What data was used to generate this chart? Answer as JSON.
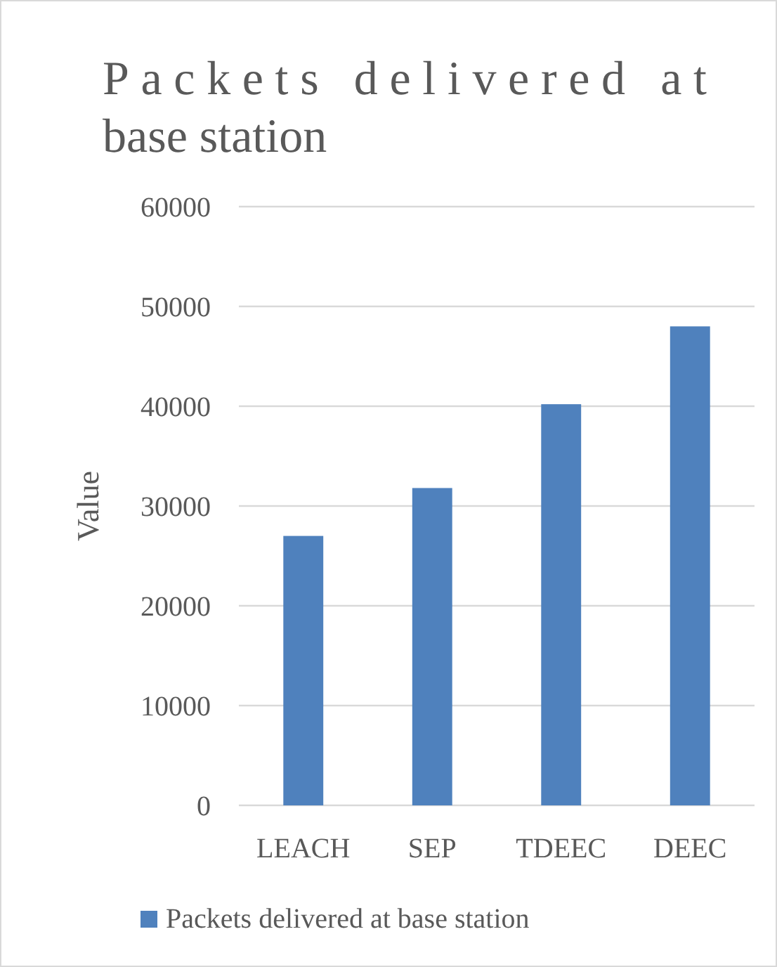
{
  "chart_data": {
    "type": "bar",
    "title": "Packets delivered at base station",
    "ylabel": "Value",
    "categories": [
      "LEACH",
      "SEP",
      "TDEEC",
      "DEEC"
    ],
    "series": [
      {
        "name": "Packets delivered at base station",
        "color": "#4f81bd",
        "values": [
          27000,
          31800,
          40200,
          48000
        ]
      }
    ],
    "ylim": [
      0,
      60000
    ],
    "yticks": [
      0,
      10000,
      20000,
      30000,
      40000,
      50000,
      60000
    ],
    "grid": "y",
    "legend": "bottom"
  }
}
